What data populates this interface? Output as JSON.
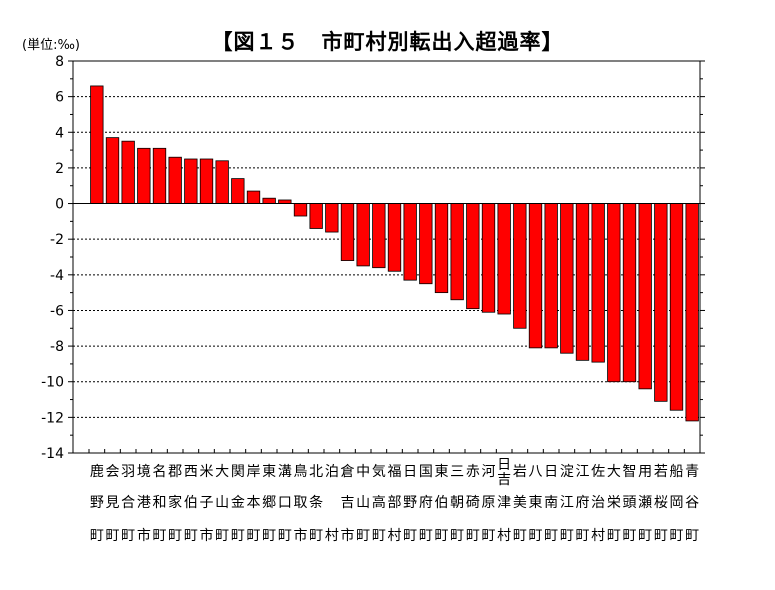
{
  "chart_data": {
    "type": "bar",
    "title": "【図１５　市町村別転出入超過率】",
    "unit_label": "(単位:‰)",
    "ylim": [
      -14,
      8
    ],
    "yticks": [
      "8",
      "6",
      "4",
      "2",
      "0",
      "-2",
      "-4",
      "-6",
      "-8",
      "-10",
      "-12",
      "-14"
    ],
    "grid": true,
    "bar_color": "#ff0000",
    "categories": [
      "鹿野町",
      "会見町",
      "羽合町",
      "境港市",
      "名和町",
      "郡家町",
      "西伯町",
      "米子市",
      "大山町",
      "関金町",
      "岸本町",
      "東郷町",
      "溝口町",
      "鳥取市",
      "北条町",
      "泊村",
      "倉吉市",
      "中山町",
      "気高町",
      "福部村",
      "日野町",
      "国府町",
      "東伯町",
      "三朝町",
      "赤碕町",
      "河原町",
      "日吉津村",
      "岩美町",
      "八東町",
      "日南町",
      "淀江町",
      "江府町",
      "佐治村",
      "大栄町",
      "智頭町",
      "用瀬町",
      "若桜町",
      "船岡町",
      "青谷町"
    ],
    "values": [
      6.6,
      3.7,
      3.5,
      3.1,
      3.1,
      2.6,
      2.5,
      2.5,
      2.4,
      1.4,
      0.7,
      0.3,
      0.2,
      -0.7,
      -1.4,
      -1.6,
      -3.2,
      -3.5,
      -3.6,
      -3.8,
      -4.3,
      -4.5,
      -5.0,
      -5.4,
      -5.9,
      -6.1,
      -6.2,
      -7.0,
      -8.1,
      -8.1,
      -8.4,
      -8.8,
      -8.9,
      -10.0,
      -10.0,
      -10.4,
      -11.1,
      -11.6,
      -12.2
    ]
  }
}
